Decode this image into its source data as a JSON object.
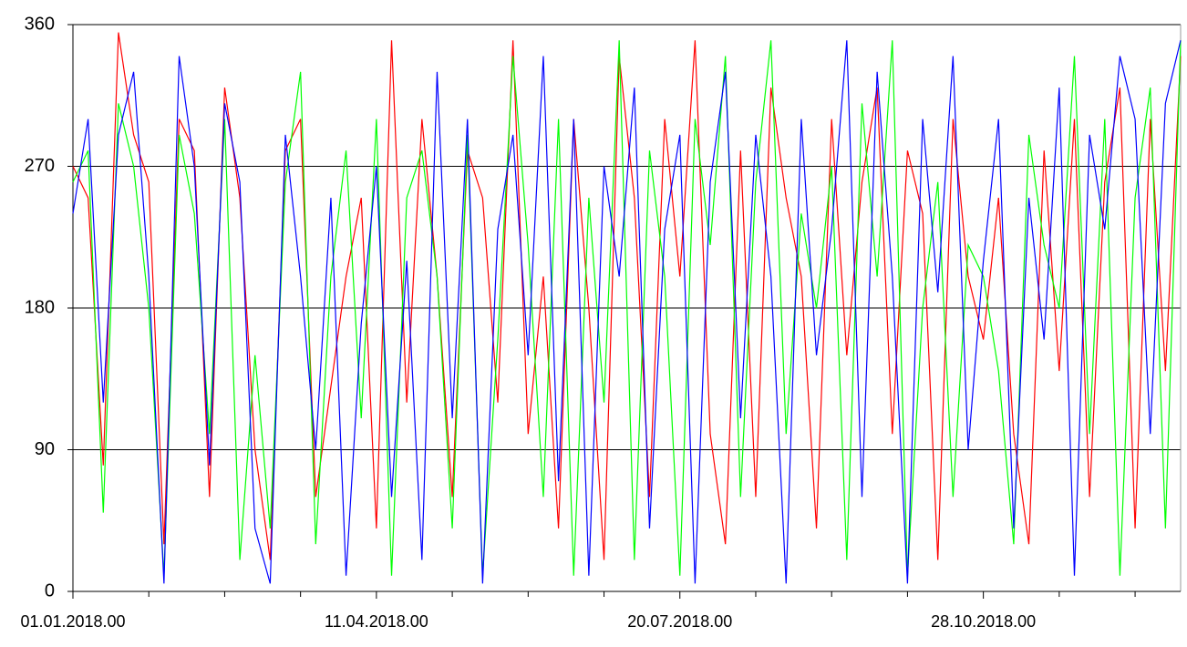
{
  "chart_data": {
    "type": "line",
    "x": [
      0,
      5,
      10,
      15,
      20,
      25,
      30,
      35,
      40,
      45,
      50,
      55,
      60,
      65,
      70,
      75,
      80,
      85,
      90,
      95,
      100,
      105,
      110,
      115,
      120,
      125,
      130,
      135,
      140,
      145,
      150,
      155,
      160,
      165,
      170,
      175,
      180,
      185,
      190,
      195,
      200,
      205,
      210,
      215,
      220,
      225,
      230,
      235,
      240,
      245,
      250,
      255,
      260,
      265,
      270,
      275,
      280,
      285,
      290,
      295,
      300,
      305,
      310,
      315,
      320,
      325,
      330,
      335,
      340,
      345,
      350,
      355,
      360,
      365
    ],
    "series": [
      {
        "color": "#ff0000",
        "values": [
          270,
          250,
          80,
          355,
          290,
          260,
          30,
          300,
          280,
          60,
          320,
          250,
          90,
          20,
          280,
          300,
          60,
          130,
          200,
          250,
          40,
          350,
          120,
          300,
          200,
          60,
          280,
          250,
          120,
          350,
          100,
          200,
          40,
          300,
          180,
          20,
          340,
          250,
          60,
          300,
          200,
          350,
          100,
          30,
          280,
          60,
          320,
          250,
          200,
          40,
          300,
          150,
          260,
          320,
          100,
          280,
          240,
          20,
          300,
          200,
          160,
          250,
          100,
          30,
          280,
          140,
          300,
          60,
          260,
          320,
          40,
          300,
          140,
          340
        ]
      },
      {
        "color": "#00ff00",
        "values": [
          260,
          280,
          50,
          310,
          270,
          180,
          10,
          290,
          240,
          100,
          300,
          20,
          150,
          40,
          260,
          330,
          30,
          200,
          280,
          110,
          300,
          10,
          250,
          280,
          200,
          40,
          290,
          10,
          160,
          340,
          220,
          60,
          300,
          10,
          250,
          120,
          350,
          20,
          280,
          200,
          10,
          300,
          220,
          340,
          60,
          260,
          350,
          100,
          240,
          180,
          270,
          20,
          310,
          200,
          350,
          10,
          180,
          260,
          60,
          220,
          200,
          140,
          30,
          290,
          220,
          180,
          340,
          100,
          300,
          10,
          250,
          320,
          40,
          350
        ]
      },
      {
        "color": "#0000ff",
        "values": [
          240,
          300,
          120,
          290,
          330,
          200,
          5,
          340,
          270,
          80,
          310,
          260,
          40,
          5,
          290,
          200,
          90,
          250,
          10,
          170,
          270,
          60,
          210,
          20,
          330,
          110,
          300,
          5,
          230,
          290,
          150,
          340,
          70,
          300,
          10,
          270,
          200,
          320,
          40,
          230,
          290,
          5,
          260,
          330,
          110,
          290,
          200,
          5,
          300,
          150,
          230,
          350,
          60,
          330,
          200,
          5,
          300,
          190,
          340,
          90,
          210,
          300,
          40,
          250,
          160,
          320,
          10,
          290,
          230,
          340,
          300,
          100,
          310,
          350
        ]
      }
    ],
    "xlim": [
      0,
      365
    ],
    "xticks": [
      {
        "value": 0,
        "label": "01.01.2018.00"
      },
      {
        "value": 100,
        "label": "11.04.2018.00"
      },
      {
        "value": 200,
        "label": "20.07.2018.00"
      },
      {
        "value": 300,
        "label": "28.10.2018.00"
      }
    ],
    "xminorticks": [
      25,
      50,
      75,
      125,
      150,
      175,
      225,
      250,
      275,
      325,
      350
    ],
    "ylim": [
      0,
      360
    ],
    "yticks": [
      0,
      90,
      180,
      270,
      360
    ],
    "grid": true
  }
}
